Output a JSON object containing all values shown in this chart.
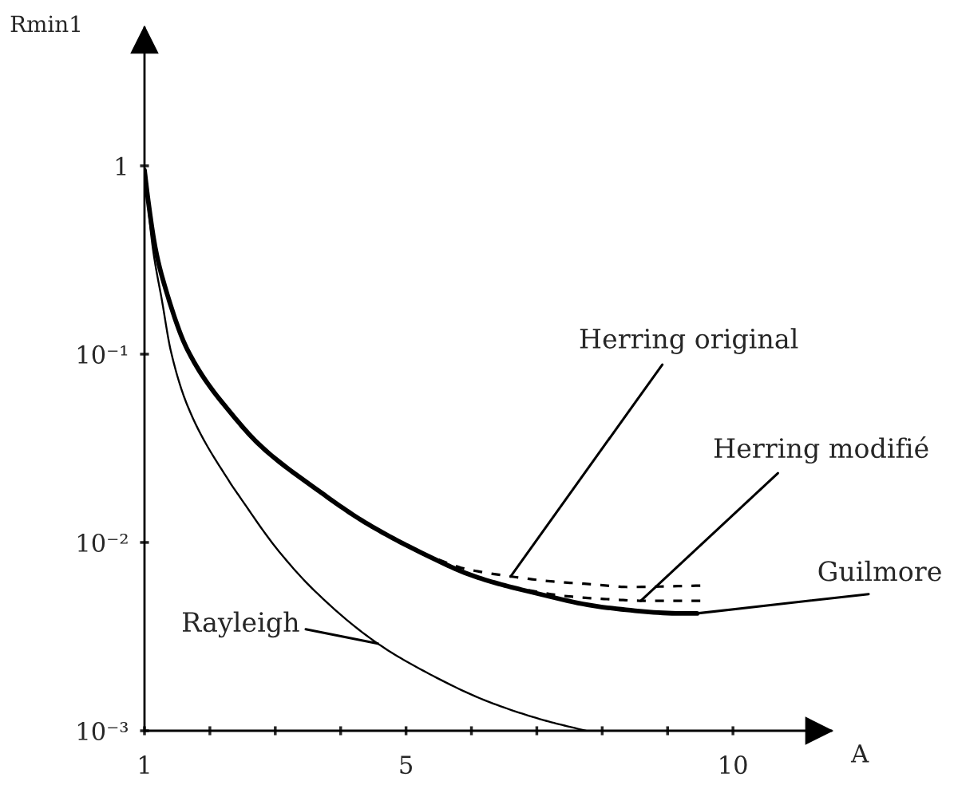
{
  "chart_data": {
    "type": "line",
    "xlabel": "A",
    "ylabel": "Rmin1",
    "log": "y",
    "xlim": [
      1,
      11.5
    ],
    "ylim": [
      0.001,
      5.4
    ],
    "xticks": [
      1,
      {
        "value": 2,
        "label": null
      },
      {
        "value": 3,
        "label": null
      },
      {
        "value": 4,
        "label": null
      },
      5,
      {
        "value": 6,
        "label": null
      },
      {
        "value": 7,
        "label": null
      },
      {
        "value": 8,
        "label": null
      },
      {
        "value": 9,
        "label": null
      },
      10
    ],
    "yticks": [
      {
        "value": 0.001,
        "label": "10⁻³"
      },
      {
        "value": 0.01,
        "label": "10⁻²"
      },
      {
        "value": 0.1,
        "label": "10⁻¹"
      },
      1
    ],
    "series": [
      {
        "color": "#000000",
        "line_style": "solid",
        "x": [
          1.0,
          1.05,
          1.17,
          1.31,
          1.66,
          2.38,
          2.8,
          3.61,
          4.37,
          5.24,
          6.05,
          6.87,
          8.08,
          9.21,
          9.45
        ],
        "values": [
          0.95,
          0.68,
          0.36,
          0.23,
          0.105,
          0.046,
          0.032,
          0.0194,
          0.0128,
          0.0088,
          0.0066,
          0.0055,
          0.0045,
          0.0042,
          0.0042
        ]
      },
      {
        "color": "#000000",
        "line_style": "solid",
        "x": [
          1.0,
          1.13,
          1.27,
          1.4,
          1.66,
          2.3,
          2.45,
          3.03,
          3.61,
          4.57,
          5.36,
          6.23,
          7.1,
          7.75
        ],
        "values": [
          0.95,
          0.36,
          0.19,
          0.105,
          0.053,
          0.021,
          0.0176,
          0.0092,
          0.0055,
          0.0029,
          0.002,
          0.00144,
          0.00114,
          0.001
        ]
      },
      {
        "color": "#000000",
        "line_style": "dashed",
        "x": [
          5.5,
          5.87,
          6.6,
          7.25,
          7.83,
          8.4,
          9.5
        ],
        "values": [
          0.0081,
          0.0073,
          0.0066,
          0.0062,
          0.006,
          0.0058,
          0.0059
        ]
      },
      {
        "color": "#000000",
        "line_style": "dashed",
        "x": [
          6.6,
          7.42,
          8.07,
          8.64,
          9.5
        ],
        "values": [
          0.0058,
          0.0052,
          0.005,
          0.0049,
          0.0049
        ]
      }
    ],
    "annotations": [
      {
        "text": "Herring original",
        "x": 6.6,
        "y": 0.0066
      },
      {
        "text": "Herring modifié",
        "x": 8.59,
        "y": 0.0049
      },
      {
        "text": "Guilmore",
        "x": 9.45,
        "y": 0.0042
      },
      {
        "text": "Rayleigh",
        "x": 4.57,
        "y": 0.0029
      }
    ]
  }
}
